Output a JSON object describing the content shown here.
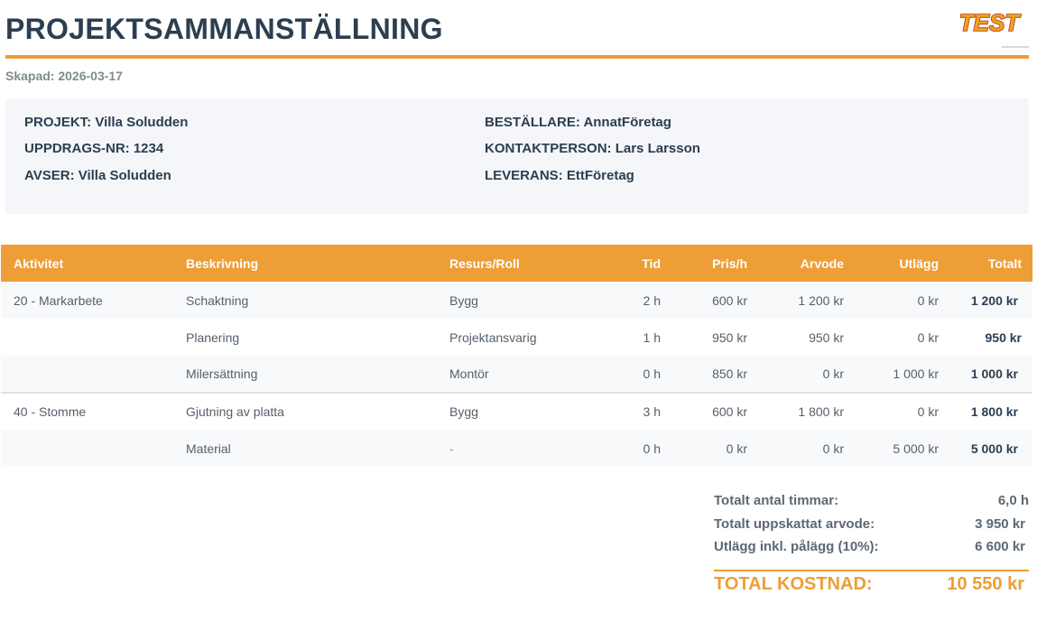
{
  "header": {
    "title": "PROJEKTSAMMANSTÄLLNING",
    "logo_text": "TEST",
    "created_label": "Skapad: 2026-03-17"
  },
  "info": {
    "project": "PROJEKT: Villa Soludden",
    "assignment_no": "UPPDRAGS-NR: 1234",
    "regarding": "AVSER: Villa Soludden",
    "client": "BESTÄLLARE: AnnatFöretag",
    "contact": "KONTAKTPERSON: Lars Larsson",
    "delivery": "LEVERANS: EttFöretag"
  },
  "table": {
    "headers": {
      "activity": "Aktivitet",
      "description": "Beskrivning",
      "resource": "Resurs/Roll",
      "time": "Tid",
      "rate": "Pris/h",
      "fee": "Arvode",
      "expenses": "Utlägg",
      "total": "Totalt"
    },
    "rows": [
      {
        "activity": "20 - Markarbete",
        "description": "Schaktning",
        "resource": "Bygg",
        "time": "2 h",
        "rate": "600 kr",
        "fee": "1 200 kr",
        "expenses": "0 kr",
        "total": "1 200 kr"
      },
      {
        "activity": "",
        "description": "Planering",
        "resource": "Projektansvarig",
        "time": "1 h",
        "rate": "950 kr",
        "fee": "950 kr",
        "expenses": "0 kr",
        "total": "950 kr"
      },
      {
        "activity": "",
        "description": "Milersättning",
        "resource": "Montör",
        "time": "0 h",
        "rate": "850 kr",
        "fee": "0 kr",
        "expenses": "1 000 kr",
        "total": "1 000 kr"
      },
      {
        "activity": "40 - Stomme",
        "description": "Gjutning av platta",
        "resource": "Bygg",
        "time": "3 h",
        "rate": "600 kr",
        "fee": "1 800 kr",
        "expenses": "0 kr",
        "total": "1 800 kr"
      },
      {
        "activity": "",
        "description": "Material",
        "resource": "-",
        "time": "0 h",
        "rate": "0 kr",
        "fee": "0 kr",
        "expenses": "5 000 kr",
        "total": "5 000 kr"
      }
    ]
  },
  "summary": {
    "hours_label": "Totalt antal timmar:",
    "hours_value": "6,0 h",
    "fee_label": "Totalt uppskattat arvode:",
    "fee_value": "3 950 kr",
    "expenses_label": "Utlägg inkl. pålägg (10%):",
    "expenses_value": "6 600 kr",
    "grand_label": "TOTAL KOSTNAD:",
    "grand_value": "10 550 kr"
  },
  "colors": {
    "accent": "#ee9e36",
    "heading": "#2c3e50",
    "muted": "#7f8c8d",
    "info_bg": "#f4f6f9"
  }
}
